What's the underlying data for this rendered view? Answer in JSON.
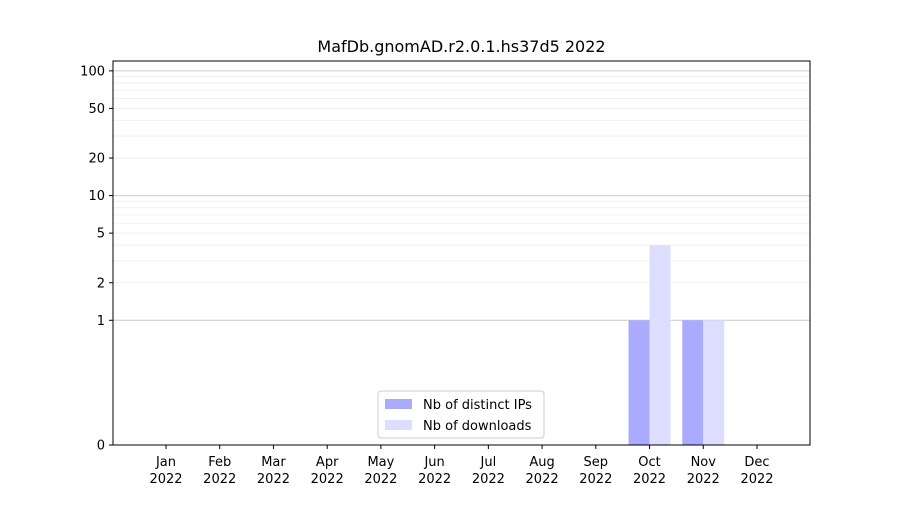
{
  "chart_data": {
    "type": "bar",
    "title": "MafDb.gnomAD.r2.0.1.hs37d5 2022",
    "xlabel": "",
    "ylabel": "",
    "y_scale": "symlog",
    "ylim": [
      0,
      120
    ],
    "y_ticks": [
      0,
      1,
      2,
      5,
      10,
      20,
      50,
      100
    ],
    "categories": [
      "Jan\n2022",
      "Feb\n2022",
      "Mar\n2022",
      "Apr\n2022",
      "May\n2022",
      "Jun\n2022",
      "Jul\n2022",
      "Aug\n2022",
      "Sep\n2022",
      "Oct\n2022",
      "Nov\n2022",
      "Dec\n2022"
    ],
    "series": [
      {
        "name": "Nb of distinct IPs",
        "color": "#aaaaff",
        "values": [
          0,
          0,
          0,
          0,
          0,
          0,
          0,
          0,
          0,
          1,
          1,
          0
        ]
      },
      {
        "name": "Nb of downloads",
        "color": "#ddddff",
        "values": [
          0,
          0,
          0,
          0,
          0,
          0,
          0,
          0,
          0,
          4,
          1,
          0
        ]
      }
    ],
    "grid": true,
    "legend_position": "lower-center"
  }
}
